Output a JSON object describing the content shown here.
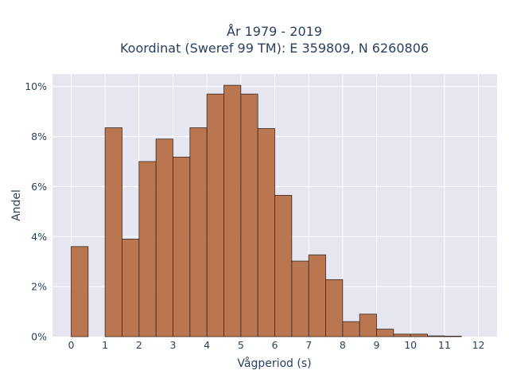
{
  "chart_data": {
    "type": "bar",
    "title_lines": [
      "År 1979 - 2019",
      "Koordinat (Sweref 99 TM): E 359809, N 6260806"
    ],
    "xlabel": "Vågperiod (s)",
    "ylabel": "Andel",
    "xlim": [
      -0.55,
      12.55
    ],
    "ylim": [
      0,
      0.105
    ],
    "x_ticks": [
      0,
      1,
      2,
      3,
      4,
      5,
      6,
      7,
      8,
      9,
      10,
      11,
      12
    ],
    "x_tick_labels": [
      "0",
      "1",
      "2",
      "3",
      "4",
      "5",
      "6",
      "7",
      "8",
      "9",
      "10",
      "11",
      "12"
    ],
    "y_ticks": [
      0,
      0.02,
      0.04,
      0.06,
      0.08,
      0.1
    ],
    "y_tick_labels": [
      "0%",
      "2%",
      "4%",
      "6%",
      "8%",
      "10%"
    ],
    "bin_width": 0.5,
    "bins": [
      {
        "x0": 0.0,
        "value": 0.036
      },
      {
        "x0": 1.0,
        "value": 0.0835
      },
      {
        "x0": 1.5,
        "value": 0.039
      },
      {
        "x0": 2.0,
        "value": 0.07
      },
      {
        "x0": 2.5,
        "value": 0.079
      },
      {
        "x0": 3.0,
        "value": 0.0718
      },
      {
        "x0": 3.5,
        "value": 0.0835
      },
      {
        "x0": 4.0,
        "value": 0.097
      },
      {
        "x0": 4.5,
        "value": 0.1005
      },
      {
        "x0": 5.0,
        "value": 0.097
      },
      {
        "x0": 5.5,
        "value": 0.0832
      },
      {
        "x0": 6.0,
        "value": 0.0565
      },
      {
        "x0": 6.5,
        "value": 0.0302
      },
      {
        "x0": 7.0,
        "value": 0.0327
      },
      {
        "x0": 7.5,
        "value": 0.0228
      },
      {
        "x0": 8.0,
        "value": 0.006
      },
      {
        "x0": 8.5,
        "value": 0.009
      },
      {
        "x0": 9.0,
        "value": 0.003
      },
      {
        "x0": 9.5,
        "value": 0.001
      },
      {
        "x0": 10.0,
        "value": 0.001
      },
      {
        "x0": 10.5,
        "value": 0.0003
      },
      {
        "x0": 11.0,
        "value": 0.0002
      }
    ],
    "grid": true,
    "colors": {
      "bar_fill": "#b5693f",
      "bar_stroke": "#3b2a20",
      "plot_bg": "#e5e6f0",
      "grid": "#ffffff"
    }
  }
}
